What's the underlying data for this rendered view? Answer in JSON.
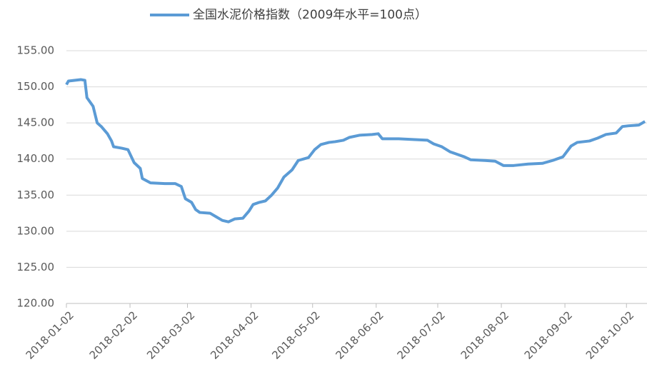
{
  "chart_data": {
    "type": "line",
    "x": [
      "2018-01-02",
      "2018-01-03",
      "2018-01-06",
      "2018-01-09",
      "2018-01-11",
      "2018-01-12",
      "2018-01-15",
      "2018-01-17",
      "2018-01-19",
      "2018-01-22",
      "2018-01-24",
      "2018-01-25",
      "2018-01-29",
      "2018-02-01",
      "2018-02-04",
      "2018-02-07",
      "2018-02-08",
      "2018-02-12",
      "2018-02-19",
      "2018-02-24",
      "2018-02-27",
      "2018-03-01",
      "2018-03-04",
      "2018-03-06",
      "2018-03-08",
      "2018-03-13",
      "2018-03-16",
      "2018-03-19",
      "2018-03-22",
      "2018-03-25",
      "2018-03-29",
      "2018-04-01",
      "2018-04-03",
      "2018-04-06",
      "2018-04-09",
      "2018-04-12",
      "2018-04-15",
      "2018-04-18",
      "2018-04-22",
      "2018-04-25",
      "2018-04-30",
      "2018-05-03",
      "2018-05-06",
      "2018-05-10",
      "2018-05-13",
      "2018-05-17",
      "2018-05-20",
      "2018-05-25",
      "2018-05-31",
      "2018-06-03",
      "2018-06-05",
      "2018-06-13",
      "2018-06-20",
      "2018-06-27",
      "2018-06-30",
      "2018-07-04",
      "2018-07-08",
      "2018-07-11",
      "2018-07-15",
      "2018-07-18",
      "2018-07-25",
      "2018-07-30",
      "2018-08-03",
      "2018-08-08",
      "2018-08-15",
      "2018-08-22",
      "2018-08-27",
      "2018-09-01",
      "2018-09-05",
      "2018-09-08",
      "2018-09-14",
      "2018-09-18",
      "2018-09-22",
      "2018-09-27",
      "2018-09-30",
      "2018-10-03",
      "2018-10-08",
      "2018-10-11"
    ],
    "series": [
      {
        "name": "全国水泥价格指数（2009年水平=100点）",
        "color": "#5b9bd5",
        "values": [
          150.3,
          150.8,
          150.9,
          151.0,
          150.9,
          148.5,
          147.3,
          145.0,
          144.5,
          143.5,
          142.5,
          141.7,
          141.5,
          141.3,
          139.5,
          138.7,
          137.3,
          136.7,
          136.6,
          136.6,
          136.2,
          134.5,
          134.0,
          133.0,
          132.6,
          132.5,
          132.0,
          131.5,
          131.3,
          131.7,
          131.8,
          132.8,
          133.7,
          134.0,
          134.2,
          135.0,
          136.0,
          137.5,
          138.5,
          139.8,
          140.2,
          141.3,
          142.0,
          142.3,
          142.4,
          142.6,
          143.0,
          143.3,
          143.4,
          143.5,
          142.8,
          142.8,
          142.7,
          142.6,
          142.1,
          141.7,
          141.0,
          140.7,
          140.3,
          139.9,
          139.8,
          139.7,
          139.1,
          139.1,
          139.3,
          139.4,
          139.8,
          140.3,
          141.8,
          142.3,
          142.5,
          142.9,
          143.4,
          143.6,
          144.5,
          144.6,
          144.7,
          145.2
        ]
      }
    ],
    "xlim": [
      "2018-01-02",
      "2018-10-12"
    ],
    "xticks": [
      "2018-01-02",
      "2018-02-02",
      "2018-03-02",
      "2018-04-02",
      "2018-05-02",
      "2018-06-02",
      "2018-07-02",
      "2018-08-02",
      "2018-09-02",
      "2018-10-02"
    ],
    "ylim": [
      120,
      155
    ],
    "yticks": [
      {
        "value": 120,
        "label": "120.00"
      },
      {
        "value": 125,
        "label": "125.00"
      },
      {
        "value": 130,
        "label": "130.00"
      },
      {
        "value": 135,
        "label": "135.00"
      },
      {
        "value": 140,
        "label": "140.00"
      },
      {
        "value": 145,
        "label": "145.00"
      },
      {
        "value": 150,
        "label": "150.00"
      },
      {
        "value": 155,
        "label": "155.00"
      }
    ],
    "grid": true,
    "legend": "top"
  }
}
